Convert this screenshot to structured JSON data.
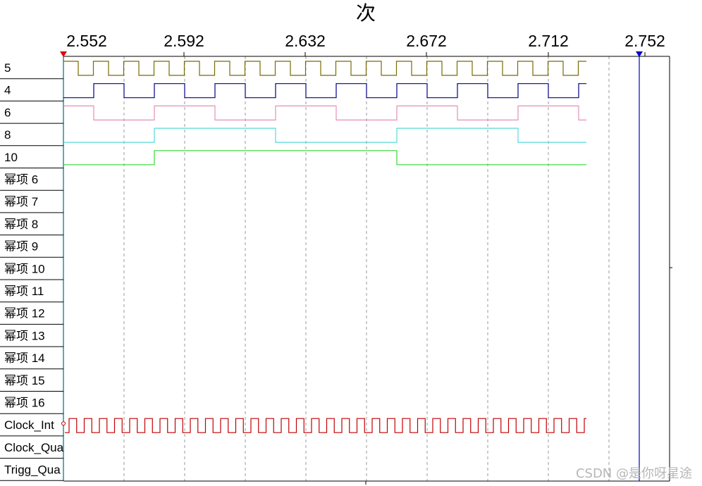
{
  "app": {
    "title": "次",
    "watermark": "CSDN @是你呀星途"
  },
  "timeline": {
    "ticks": [
      "2.552",
      "2.592",
      "2.632",
      "2.672",
      "2.712",
      "2.752"
    ],
    "colors": {
      "cursor_left": "#e00000",
      "cursor_right": "#0000c0",
      "grid": "#9a9a9a",
      "axis": "#000000"
    }
  },
  "channels": [
    {
      "label": "5",
      "color": "#7a6a00",
      "signal": "square",
      "divider": 1,
      "initial": 1
    },
    {
      "label": "4",
      "color": "#00008b",
      "signal": "square",
      "divider": 2,
      "initial": 0
    },
    {
      "label": "6",
      "color": "#e68fb8",
      "signal": "square",
      "divider": 4,
      "initial": 1
    },
    {
      "label": "8",
      "color": "#55dada",
      "signal": "square",
      "divider": 8,
      "initial": 0
    },
    {
      "label": "10",
      "color": "#36d836",
      "signal": "square",
      "divider": 16,
      "initial": 0
    },
    {
      "label": "幂项 6",
      "color": "",
      "signal": "none"
    },
    {
      "label": "幂项 7",
      "color": "",
      "signal": "none"
    },
    {
      "label": "幂项 8",
      "color": "",
      "signal": "none"
    },
    {
      "label": "幂项 9",
      "color": "",
      "signal": "none"
    },
    {
      "label": "幂项 10",
      "color": "",
      "signal": "none"
    },
    {
      "label": "幂项 11",
      "color": "",
      "signal": "none"
    },
    {
      "label": "幂项 12",
      "color": "",
      "signal": "none"
    },
    {
      "label": "幂项 13",
      "color": "",
      "signal": "none"
    },
    {
      "label": "幂项 14",
      "color": "",
      "signal": "none"
    },
    {
      "label": "幂项 15",
      "color": "",
      "signal": "none"
    },
    {
      "label": "幂项 16",
      "color": "",
      "signal": "none"
    },
    {
      "label": "Clock_Int",
      "color": "#c00000",
      "signal": "clock"
    },
    {
      "label": "Clock_Qua",
      "color": "",
      "signal": "none"
    },
    {
      "label": "Trigg_Qua",
      "color": "",
      "signal": "none"
    }
  ]
}
